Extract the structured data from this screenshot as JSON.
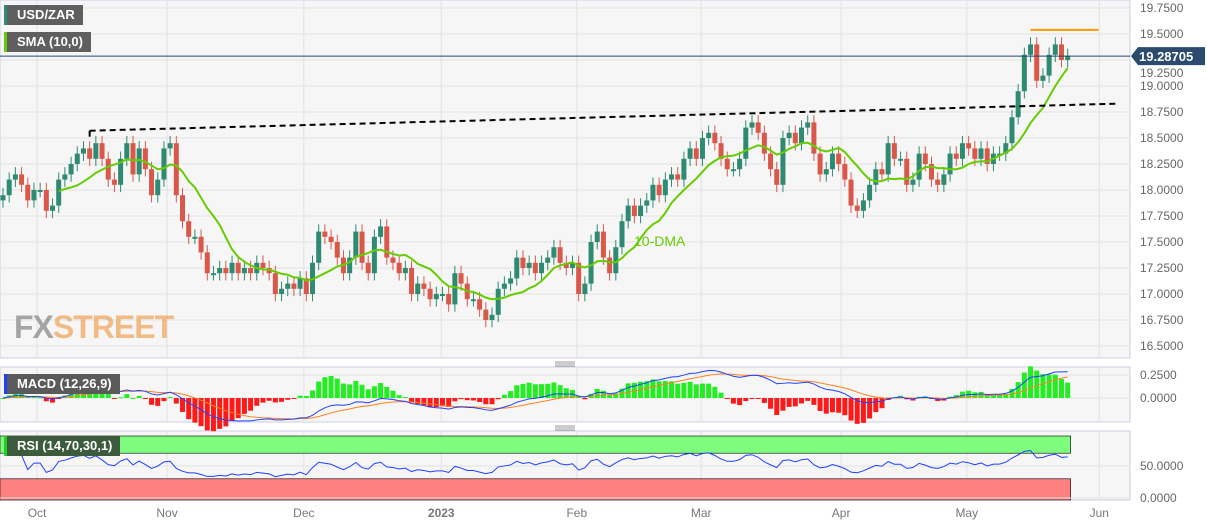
{
  "chart_data": {
    "type": "candlestick",
    "title": "USD/ZAR",
    "y_ticks": [
      "19.7500",
      "19.5000",
      "19.2500",
      "19.0000",
      "18.7500",
      "18.5000",
      "18.2500",
      "18.0000",
      "17.7500",
      "17.5000",
      "17.2500",
      "17.0000",
      "16.7500",
      "16.5000"
    ],
    "y_tick_values": [
      19.75,
      19.5,
      19.25,
      19.0,
      18.75,
      18.5,
      18.25,
      18.0,
      17.75,
      17.5,
      17.25,
      17.0,
      16.75,
      16.5
    ],
    "ylim": [
      16.45,
      19.8
    ],
    "x_ticks": [
      {
        "label": "Oct",
        "index": 5.5
      },
      {
        "label": "Nov",
        "index": 26.5
      },
      {
        "label": "Dec",
        "index": 48.6
      },
      {
        "label": "2023",
        "index": 70.8,
        "bold": true
      },
      {
        "label": "Feb",
        "index": 92.7
      },
      {
        "label": "Mar",
        "index": 112.8
      },
      {
        "label": "Apr",
        "index": 135.4
      },
      {
        "label": "May",
        "index": 155.7
      },
      {
        "label": "Jun",
        "index": 177.1
      }
    ],
    "grid": true,
    "current_price": "19.28705",
    "current_price_value": 19.28705,
    "closes": [
      17.95,
      18.1,
      18.15,
      18.05,
      17.9,
      18.0,
      18.0,
      17.8,
      17.85,
      18.1,
      18.15,
      18.25,
      18.35,
      18.4,
      18.3,
      18.45,
      18.3,
      18.1,
      18.05,
      18.3,
      18.45,
      18.15,
      18.4,
      18.2,
      17.95,
      18.1,
      18.4,
      18.45,
      17.95,
      17.7,
      17.55,
      17.55,
      17.4,
      17.2,
      17.2,
      17.25,
      17.2,
      17.3,
      17.2,
      17.25,
      17.2,
      17.3,
      17.25,
      17.2,
      17.0,
      17.05,
      17.1,
      17.05,
      17.15,
      17.0,
      17.3,
      17.6,
      17.55,
      17.5,
      17.35,
      17.2,
      17.35,
      17.6,
      17.3,
      17.2,
      17.55,
      17.65,
      17.35,
      17.3,
      17.2,
      17.25,
      17.0,
      17.1,
      17.05,
      16.95,
      17.0,
      17.0,
      16.9,
      17.2,
      17.1,
      16.95,
      16.95,
      16.85,
      16.75,
      16.8,
      17.05,
      17.1,
      17.15,
      17.35,
      17.25,
      17.3,
      17.2,
      17.3,
      17.35,
      17.45,
      17.3,
      17.25,
      17.3,
      17.0,
      17.1,
      17.5,
      17.6,
      17.35,
      17.2,
      17.45,
      17.7,
      17.85,
      17.75,
      17.85,
      17.9,
      18.05,
      17.95,
      18.1,
      18.15,
      18.1,
      18.3,
      18.4,
      18.3,
      18.5,
      18.55,
      18.45,
      18.3,
      18.2,
      18.2,
      18.3,
      18.6,
      18.65,
      18.55,
      18.35,
      18.2,
      18.05,
      18.5,
      18.55,
      18.45,
      18.6,
      18.65,
      18.35,
      18.15,
      18.2,
      18.35,
      18.25,
      18.1,
      17.85,
      17.8,
      17.9,
      18.05,
      18.2,
      18.15,
      18.45,
      18.3,
      18.3,
      18.05,
      18.1,
      18.35,
      18.25,
      18.1,
      18.05,
      18.15,
      18.35,
      18.3,
      18.45,
      18.4,
      18.3,
      18.4,
      18.25,
      18.35,
      18.35,
      18.45,
      18.7,
      18.95,
      19.3,
      19.4,
      19.05,
      19.1,
      19.3,
      19.4,
      19.25,
      19.29
    ],
    "overlays": {
      "sma": {
        "label": "SMA (10,0)",
        "period": 10,
        "annotation": "10-DMA",
        "color": "#66cc00"
      },
      "trendline": {
        "style": "dashed",
        "color": "#000000",
        "from": {
          "index": 14,
          "value": 18.57
        },
        "to": {
          "index": 180,
          "value": 18.83
        }
      },
      "resistance": {
        "color": "#ff9900",
        "value": 19.54,
        "from_index": 166,
        "to_index": 177
      },
      "price_line_color": "#23456e"
    },
    "macd": {
      "label": "MACD (12,26,9)",
      "fast": 12,
      "slow": 26,
      "signal": 9,
      "y_ticks": [
        "0.2500",
        "0.0000"
      ],
      "y_tick_values": [
        0.25,
        0.0
      ],
      "ylim": [
        -0.28,
        0.32
      ]
    },
    "rsi": {
      "label": "RSI (14,70,30,1)",
      "period": 14,
      "overbought": 70,
      "oversold": 30,
      "y_ticks": [
        "50.0000",
        "0.0000"
      ],
      "y_tick_values": [
        50,
        0
      ]
    },
    "colors": {
      "up": "#2f8a72",
      "down": "#d9584a",
      "macd": "#2040ff",
      "signal": "#ff7f1e",
      "hist_pos": "#22ee22",
      "hist_neg": "#ff1a1a",
      "rsi": "#2040ff",
      "ob_band": "#7dfc7d",
      "os_band": "#ff8080"
    }
  },
  "legend": {
    "symbol": "USD/ZAR",
    "sma": "SMA (10,0)",
    "macd": "MACD (12,26,9)",
    "rsi": "RSI (14,70,30,1)"
  },
  "watermark": {
    "fx": "FX",
    "street": "STREET"
  }
}
